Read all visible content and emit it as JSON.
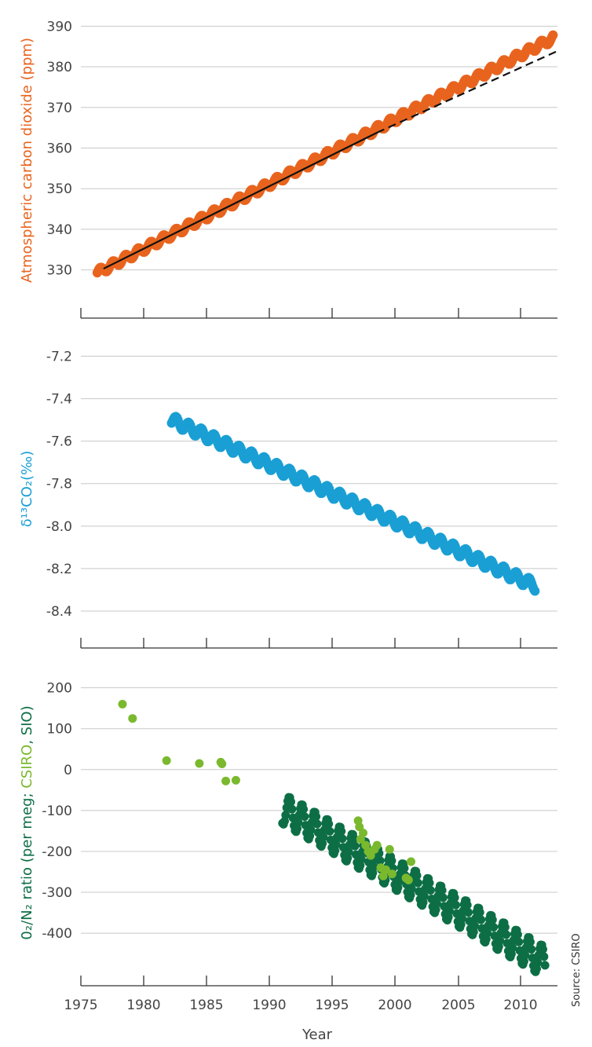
{
  "source_note": "Source: CSIRO",
  "colors": {
    "co2": "#e8641e",
    "d13c": "#1a9fd4",
    "o2_sio": "#0d6e45",
    "o2_csiro": "#7ab92e",
    "fit": "#111111",
    "grid": "#c8c8c8",
    "axis": "#333333"
  },
  "chart_data": [
    {
      "type": "scatter",
      "xlim": [
        1975,
        2013
      ],
      "ylim": [
        322,
        392
      ],
      "yticks": [
        330,
        340,
        350,
        360,
        370,
        380,
        390
      ],
      "ylabel": "Atmospheric carbon dioxide (ppm)",
      "grid": true,
      "series": [
        {
          "key": "co2",
          "trend": {
            "start": 1976.3,
            "end": 2012.5,
            "values": [
              329.3,
              387.1
            ],
            "seasonal_amplitude": 0.9
          }
        },
        {
          "key": "fit_solid",
          "x": [
            1976.8,
            1998.5
          ],
          "y": [
            330.3,
            363.8
          ]
        },
        {
          "key": "fit_dashed",
          "x": [
            1998.5,
            2012.9
          ],
          "y": [
            363.8,
            384.0
          ]
        }
      ]
    },
    {
      "type": "scatter",
      "xlim": [
        1975,
        2013
      ],
      "ylim": [
        -8.5,
        -7.15
      ],
      "yticks": [
        -7.2,
        -7.4,
        -7.6,
        -7.8,
        -8.0,
        -8.2,
        -8.4
      ],
      "ylabel": "δ¹³CO₂(‰)",
      "grid": true,
      "series": [
        {
          "key": "d13c",
          "trend": {
            "start": 1982.2,
            "end": 2011.0,
            "values": [
              -7.5,
              -8.28
            ],
            "seasonal_amplitude": 0.025
          }
        }
      ]
    },
    {
      "type": "scatter",
      "xlim": [
        1975,
        2013
      ],
      "ylim": [
        -490,
        230
      ],
      "yticks": [
        200,
        100,
        0,
        -100,
        -200,
        -300,
        -400
      ],
      "xticks": [
        1975,
        1980,
        1985,
        1990,
        1995,
        2000,
        2005,
        2010
      ],
      "xlabel": "Year",
      "ylabel_parts": [
        "0₂/N₂ ratio (per meg; ",
        "CSIRO",
        ", SIO)"
      ],
      "grid": true,
      "series": [
        {
          "key": "o2_sio",
          "name": "SIO",
          "trend": {
            "start": 1991.0,
            "end": 2011.8,
            "values": [
              -95,
              -470
            ],
            "seasonal_amplitude": 38
          }
        },
        {
          "key": "o2_csiro",
          "name": "CSIRO",
          "x": [
            1978.3,
            1979.1,
            1981.8,
            1984.4,
            1986.1,
            1986.2,
            1986.5,
            1987.3,
            1997.0,
            1997.1,
            1997.2,
            1997.4,
            1997.6,
            1997.8,
            1998.0,
            1998.3,
            1998.5,
            1998.8,
            1999.0,
            1999.2,
            1999.5,
            1999.7,
            2000.8,
            2001.0,
            2001.2
          ],
          "y": [
            160,
            125,
            22,
            15,
            18,
            14,
            -28,
            -26,
            -125,
            -140,
            -170,
            -155,
            -185,
            -200,
            -210,
            -195,
            -185,
            -240,
            -260,
            -245,
            -195,
            -255,
            -265,
            -270,
            -225
          ]
        }
      ]
    }
  ]
}
